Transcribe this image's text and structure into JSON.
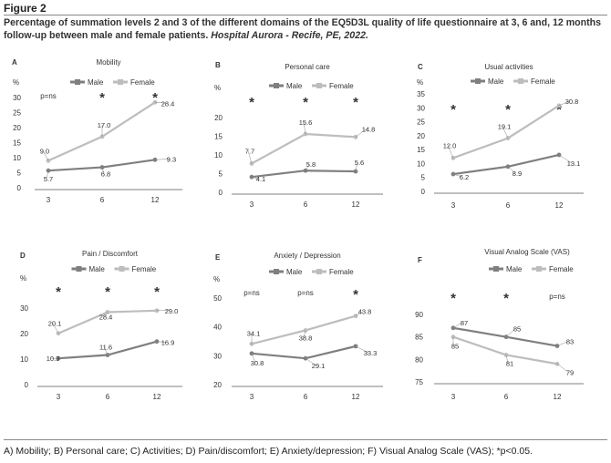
{
  "figure": {
    "label": "Figure 2",
    "caption_main": "Percentage of summation levels 2 and 3 of the different domains of the EQ5D3L quality of life questionnaire at 3, 6 and, 12 months follow-up between male and female patients.",
    "caption_source": "Hospital Aurora - Recife, PE, 2022.",
    "footnote": "A) Mobility; B) Personal care; C) Activities; D) Pain/discomfort; E) Anxiety/depression; F) Visual Analog Scale (VAS); *p<0.05."
  },
  "colors": {
    "male": "#7f7f7f",
    "female": "#bdbdbd",
    "axis": "#555555",
    "text": "#333333"
  },
  "chart_data": [
    {
      "panel": "A",
      "type": "line",
      "title": "Mobility",
      "ylabel": "%",
      "categories": [
        "3",
        "6",
        "12"
      ],
      "yticks": [
        0,
        5,
        10,
        15,
        20,
        25,
        30
      ],
      "ylim": [
        0,
        30
      ],
      "series": [
        {
          "name": "Male",
          "values": [
            5.7,
            6.8,
            9.3
          ],
          "labels": [
            "5.7",
            "6.8",
            "9.3"
          ]
        },
        {
          "name": "Female",
          "values": [
            9.0,
            17.0,
            28.4
          ],
          "labels": [
            "9.0",
            "17.0",
            "28.4"
          ]
        }
      ],
      "significance": [
        "p=ns",
        "*",
        "*"
      ]
    },
    {
      "panel": "B",
      "type": "line",
      "title": "Personal care",
      "ylabel": "%",
      "categories": [
        "3",
        "6",
        "12"
      ],
      "yticks": [
        0,
        5,
        10,
        15,
        20
      ],
      "ylim": [
        0,
        20
      ],
      "series": [
        {
          "name": "Male",
          "values": [
            4.1,
            5.8,
            5.6
          ],
          "labels": [
            "4.1",
            "5.8",
            "5.6"
          ]
        },
        {
          "name": "Female",
          "values": [
            7.7,
            15.6,
            14.8
          ],
          "labels": [
            "7.7",
            "15.6",
            "14.8"
          ]
        }
      ],
      "significance": [
        "*",
        "*",
        "*"
      ]
    },
    {
      "panel": "C",
      "type": "line",
      "title": "Usual activities",
      "ylabel": "%",
      "categories": [
        "3",
        "6",
        "12"
      ],
      "yticks": [
        0,
        5,
        10,
        15,
        20,
        25,
        30,
        35
      ],
      "ylim": [
        0,
        35
      ],
      "series": [
        {
          "name": "Male",
          "values": [
            6.2,
            8.9,
            13.1
          ],
          "labels": [
            "6.2",
            "8.9",
            "13.1"
          ]
        },
        {
          "name": "Female",
          "values": [
            12.0,
            19.1,
            30.8
          ],
          "labels": [
            "12.0",
            "19.1",
            "30.8"
          ]
        }
      ],
      "significance": [
        "*",
        "*",
        "*"
      ]
    },
    {
      "panel": "D",
      "type": "line",
      "title": "Pain / Discomfort",
      "ylabel": "%",
      "categories": [
        "3",
        "6",
        "12"
      ],
      "yticks": [
        0,
        10,
        20,
        30
      ],
      "ylim": [
        0,
        30
      ],
      "series": [
        {
          "name": "Male",
          "values": [
            10.3,
            11.6,
            16.9
          ],
          "labels": [
            "10.3",
            "11.6",
            "16.9"
          ]
        },
        {
          "name": "Female",
          "values": [
            20.1,
            28.4,
            29.0
          ],
          "labels": [
            "20.1",
            "28.4",
            "29.0"
          ]
        }
      ],
      "significance": [
        "*",
        "*",
        "*"
      ]
    },
    {
      "panel": "E",
      "type": "line",
      "title": "Anxiety / Depression",
      "ylabel": "%",
      "categories": [
        "3",
        "6",
        "12"
      ],
      "yticks": [
        20,
        30,
        40,
        50
      ],
      "ylim": [
        20,
        50
      ],
      "series": [
        {
          "name": "Male",
          "values": [
            30.8,
            29.1,
            33.3
          ],
          "labels": [
            "30.8",
            "29.1",
            "33.3"
          ]
        },
        {
          "name": "Female",
          "values": [
            34.1,
            38.8,
            43.8
          ],
          "labels": [
            "34.1",
            "38.8",
            "43.8"
          ]
        }
      ],
      "significance": [
        "p=ns",
        "p=ns",
        "*"
      ]
    },
    {
      "panel": "F",
      "type": "line",
      "title": "Visual Analog Scale (VAS)",
      "ylabel": "",
      "categories": [
        "3",
        "6",
        "12"
      ],
      "yticks": [
        75,
        80,
        85,
        90
      ],
      "ylim": [
        75,
        90
      ],
      "series": [
        {
          "name": "Male",
          "values": [
            87,
            85,
            83
          ],
          "labels": [
            "87",
            "85",
            "83"
          ]
        },
        {
          "name": "Female",
          "values": [
            85,
            81,
            79
          ],
          "labels": [
            "85",
            "81",
            "79"
          ]
        }
      ],
      "significance": [
        "*",
        "*",
        "p=ns"
      ]
    }
  ]
}
